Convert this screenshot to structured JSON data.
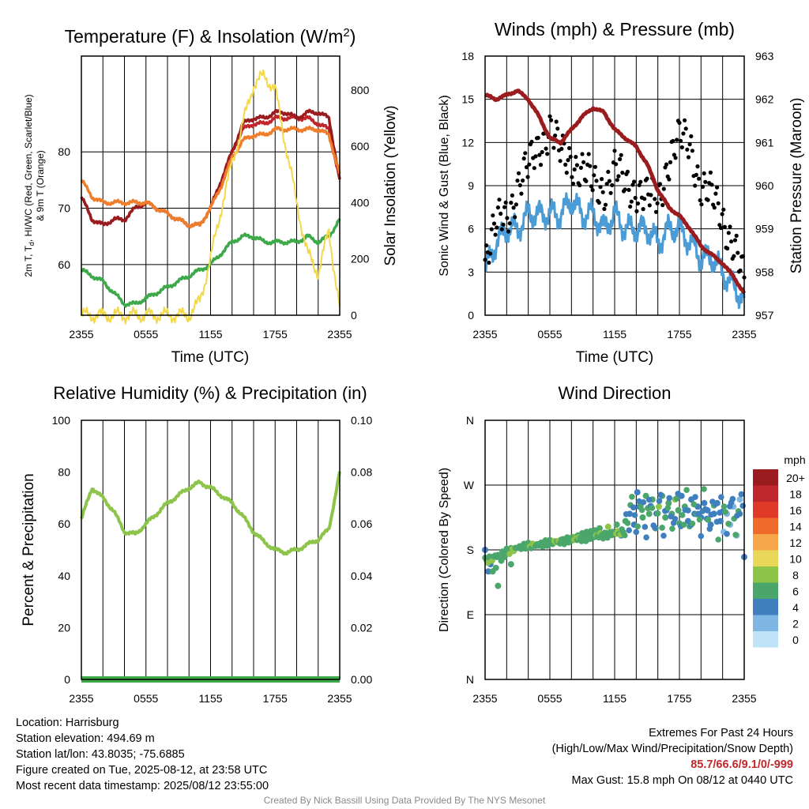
{
  "x_tick_labels": [
    "2355",
    "0555",
    "1155",
    "1755",
    "2355"
  ],
  "panels": {
    "temperature": {
      "title": "Temperature (F) & Insolation (W/m",
      "title_sup": "2",
      "title_end": ")",
      "ylabel_line1": "2m T, T",
      "ylabel_sub": "d",
      "ylabel_line1_rest": ", HI/WC (Red, Green, Scarlet/Blue)",
      "ylabel_line2": "& 9m T (Orange)",
      "y2label": "Solar Insolation (Yellow)",
      "xlabel": "Time (UTC)",
      "y_ticks": [
        "60",
        "70",
        "80"
      ],
      "y2_ticks": [
        "0",
        "200",
        "400",
        "600",
        "800"
      ]
    },
    "winds": {
      "title": "Winds (mph) & Pressure (mb)",
      "ylabel": "Sonic Wind & Gust (Blue, Black)",
      "y2label": "Station Pressure (Maroon)",
      "xlabel": "Time (UTC)",
      "y_ticks": [
        "0",
        "3",
        "6",
        "9",
        "12",
        "15",
        "18"
      ],
      "y2_ticks": [
        "957",
        "958",
        "959",
        "960",
        "961",
        "962",
        "963"
      ]
    },
    "humidity": {
      "title": "Relative Humidity (%) & Precipitation (in)",
      "ylabel": "Percent & Precipitation",
      "y_ticks": [
        "0",
        "20",
        "40",
        "60",
        "80",
        "100"
      ],
      "y2_ticks": [
        "0.00",
        "0.02",
        "0.04",
        "0.06",
        "0.08",
        "0.10"
      ]
    },
    "direction": {
      "title": "Wind Direction",
      "ylabel": "Direction (Colored By Speed)",
      "y_ticks": [
        "N",
        "E",
        "S",
        "W",
        "N"
      ],
      "legend_title": "mph",
      "legend_labels": [
        "20+",
        "18",
        "16",
        "14",
        "12",
        "10",
        "8",
        "6",
        "4",
        "2",
        "0"
      ],
      "legend_colors": [
        "#9b1c1f",
        "#c0272d",
        "#df3a28",
        "#ef6b2c",
        "#f7a64a",
        "#e9d75a",
        "#8dc44a",
        "#4aa66a",
        "#3f7fbe",
        "#7fb6e3",
        "#bfe3f7"
      ]
    }
  },
  "chart_data": [
    {
      "type": "line",
      "title": "Temperature (F) & Insolation (W/m2)",
      "xlabel": "Time (UTC)",
      "ylabel": "2m T, Td, HI/WC (Red, Green, Scarlet/Blue) & 9m T (Orange)",
      "y2label": "Solar Insolation (Yellow)",
      "x": [
        0,
        1,
        2,
        3,
        4,
        5,
        6,
        7,
        8,
        9,
        10,
        11,
        12,
        13,
        14,
        15,
        16,
        17,
        18,
        19,
        20,
        21,
        22,
        23,
        24
      ],
      "ylim": [
        51,
        97
      ],
      "y2lim": [
        0,
        920
      ],
      "series": [
        {
          "name": "2m T",
          "color": "#c0272d",
          "values": [
            72,
            68,
            67,
            68,
            68,
            70,
            71,
            70,
            69,
            68,
            67,
            67,
            70,
            75,
            80,
            84,
            85,
            85,
            86,
            86,
            86,
            86,
            85,
            84,
            75
          ]
        },
        {
          "name": "HI/WC",
          "color": "#9b1c1f",
          "values": [
            72,
            68,
            67,
            68,
            68,
            70,
            71,
            70,
            69,
            68,
            67,
            67,
            70,
            75,
            80,
            85,
            86,
            86,
            87,
            87,
            86,
            87,
            87,
            86,
            75
          ]
        },
        {
          "name": "9m T",
          "color": "#ef7e2c",
          "values": [
            75,
            72,
            71,
            71,
            71,
            71,
            71,
            70,
            69,
            68,
            67,
            67,
            70,
            74,
            79,
            82,
            83,
            83,
            84,
            84,
            84,
            84,
            84,
            83,
            76
          ]
        },
        {
          "name": "Td",
          "color": "#3ea94a",
          "values": [
            59,
            58,
            57,
            55,
            53,
            53,
            54,
            55,
            56,
            57,
            58,
            59,
            60,
            62,
            64,
            65,
            65,
            64,
            64,
            64,
            64,
            65,
            64,
            65,
            68
          ]
        },
        {
          "name": "Solar Insolation",
          "color": "#f2d84a",
          "values": [
            0,
            0,
            0,
            0,
            0,
            0,
            0,
            0,
            0,
            0,
            0,
            50,
            200,
            380,
            540,
            680,
            820,
            850,
            800,
            600,
            400,
            220,
            150,
            300,
            20
          ]
        }
      ]
    },
    {
      "type": "line",
      "title": "Winds (mph) & Pressure (mb)",
      "xlabel": "Time (UTC)",
      "ylabel": "Sonic Wind & Gust (Blue, Black)",
      "y2label": "Station Pressure (Maroon)",
      "x": [
        0,
        1,
        2,
        3,
        4,
        5,
        6,
        7,
        8,
        9,
        10,
        11,
        12,
        13,
        14,
        15,
        16,
        17,
        18,
        19,
        20,
        21,
        22,
        23,
        24
      ],
      "ylim": [
        0,
        18
      ],
      "y2lim": [
        957,
        963
      ],
      "series": [
        {
          "name": "Sonic Wind",
          "color": "#4a9bd6",
          "values": [
            3,
            5,
            6,
            6,
            7,
            7,
            7,
            7,
            8,
            7,
            7,
            6,
            7,
            6,
            6,
            6,
            5,
            6,
            6,
            5,
            4,
            4,
            3,
            2,
            1
          ]
        },
        {
          "name": "Gust",
          "color": "#000000",
          "values": [
            4,
            6,
            7,
            9,
            10,
            12,
            13,
            11,
            11,
            10,
            9,
            9,
            10,
            9,
            9,
            8,
            8,
            11,
            12,
            12,
            9,
            8,
            7,
            5,
            2
          ]
        },
        {
          "name": "Station Pressure",
          "color": "#9b1c1f",
          "values": [
            962.1,
            962.0,
            962.1,
            962.2,
            962.0,
            961.6,
            961.1,
            961.0,
            961.3,
            961.6,
            961.8,
            961.7,
            961.3,
            961.1,
            960.9,
            960.5,
            959.9,
            959.5,
            959.3,
            959.0,
            958.6,
            958.4,
            958.2,
            957.9,
            957.5
          ]
        }
      ]
    },
    {
      "type": "line",
      "title": "Relative Humidity (%) & Precipitation (in)",
      "ylabel": "Percent & Precipitation",
      "x": [
        0,
        1,
        2,
        3,
        4,
        5,
        6,
        7,
        8,
        9,
        10,
        11,
        12,
        13,
        14,
        15,
        16,
        17,
        18,
        19,
        20,
        21,
        22,
        23,
        24
      ],
      "ylim": [
        0,
        100
      ],
      "y2lim": [
        0,
        0.1
      ],
      "series": [
        {
          "name": "Relative Humidity",
          "color": "#8dc44a",
          "values": [
            62,
            74,
            70,
            65,
            57,
            56,
            60,
            64,
            68,
            71,
            74,
            76,
            74,
            71,
            68,
            63,
            57,
            53,
            50,
            49,
            50,
            52,
            54,
            58,
            80
          ]
        },
        {
          "name": "Precipitation",
          "color": "#3ea94a",
          "values": [
            0,
            0,
            0,
            0,
            0,
            0,
            0,
            0,
            0,
            0,
            0,
            0,
            0,
            0,
            0,
            0,
            0,
            0,
            0,
            0,
            0,
            0,
            0,
            0,
            0
          ]
        }
      ]
    },
    {
      "type": "scatter",
      "title": "Wind Direction",
      "ylabel": "Direction (Colored By Speed)",
      "y_ticks": [
        "N",
        "E",
        "S",
        "W",
        "N"
      ],
      "ylim": [
        0,
        360
      ],
      "colorbar_label": "mph",
      "points": [
        {
          "x": 0.0,
          "y": 180,
          "speed": 3
        },
        {
          "x": 0.3,
          "y": 150,
          "speed": 4
        },
        {
          "x": 0.5,
          "y": 160,
          "speed": 4
        },
        {
          "x": 0.7,
          "y": 150,
          "speed": 5
        },
        {
          "x": 1.0,
          "y": 155,
          "speed": 5
        },
        {
          "x": 1.2,
          "y": 130,
          "speed": 6
        },
        {
          "x": 1.5,
          "y": 165,
          "speed": 6
        },
        {
          "x": 1.8,
          "y": 170,
          "speed": 5
        },
        {
          "x": 2.1,
          "y": 175,
          "speed": 6
        },
        {
          "x": 2.4,
          "y": 160,
          "speed": 5
        },
        {
          "x": 2.7,
          "y": 180,
          "speed": 6
        },
        {
          "x": 3.0,
          "y": 183,
          "speed": 7
        },
        {
          "x": 3.4,
          "y": 185,
          "speed": 7
        },
        {
          "x": 3.8,
          "y": 186,
          "speed": 7
        },
        {
          "x": 4.2,
          "y": 185,
          "speed": 7
        },
        {
          "x": 4.6,
          "y": 187,
          "speed": 7
        },
        {
          "x": 5.0,
          "y": 188,
          "speed": 7
        },
        {
          "x": 5.4,
          "y": 187,
          "speed": 7
        },
        {
          "x": 5.8,
          "y": 190,
          "speed": 7
        },
        {
          "x": 6.2,
          "y": 190,
          "speed": 7
        },
        {
          "x": 6.6,
          "y": 192,
          "speed": 7
        },
        {
          "x": 7.0,
          "y": 194,
          "speed": 7
        },
        {
          "x": 7.4,
          "y": 195,
          "speed": 7
        },
        {
          "x": 7.8,
          "y": 196,
          "speed": 7
        },
        {
          "x": 8.2,
          "y": 198,
          "speed": 7
        },
        {
          "x": 8.6,
          "y": 200,
          "speed": 6
        },
        {
          "x": 9.0,
          "y": 203,
          "speed": 6
        },
        {
          "x": 9.4,
          "y": 205,
          "speed": 6
        },
        {
          "x": 9.8,
          "y": 206,
          "speed": 6
        },
        {
          "x": 10.2,
          "y": 207,
          "speed": 6
        },
        {
          "x": 10.6,
          "y": 210,
          "speed": 6
        },
        {
          "x": 11.0,
          "y": 200,
          "speed": 6
        },
        {
          "x": 11.4,
          "y": 212,
          "speed": 7
        },
        {
          "x": 11.8,
          "y": 205,
          "speed": 6
        },
        {
          "x": 12.2,
          "y": 215,
          "speed": 6
        },
        {
          "x": 12.6,
          "y": 200,
          "speed": 4
        },
        {
          "x": 13.0,
          "y": 220,
          "speed": 5
        },
        {
          "x": 13.4,
          "y": 230,
          "speed": 4
        },
        {
          "x": 13.8,
          "y": 215,
          "speed": 4
        },
        {
          "x": 14.1,
          "y": 260,
          "speed": 3
        },
        {
          "x": 14.3,
          "y": 240,
          "speed": 4
        },
        {
          "x": 14.6,
          "y": 225,
          "speed": 5
        },
        {
          "x": 14.9,
          "y": 255,
          "speed": 6
        },
        {
          "x": 15.2,
          "y": 230,
          "speed": 5
        },
        {
          "x": 15.5,
          "y": 250,
          "speed": 6
        },
        {
          "x": 15.8,
          "y": 210,
          "speed": 6
        },
        {
          "x": 16.1,
          "y": 240,
          "speed": 7
        },
        {
          "x": 16.4,
          "y": 255,
          "speed": 5
        },
        {
          "x": 16.7,
          "y": 225,
          "speed": 6
        },
        {
          "x": 17.0,
          "y": 245,
          "speed": 6
        },
        {
          "x": 17.3,
          "y": 230,
          "speed": 6
        },
        {
          "x": 17.6,
          "y": 250,
          "speed": 7
        },
        {
          "x": 17.9,
          "y": 235,
          "speed": 6
        },
        {
          "x": 18.2,
          "y": 255,
          "speed": 4
        },
        {
          "x": 18.5,
          "y": 240,
          "speed": 5
        },
        {
          "x": 18.8,
          "y": 220,
          "speed": 4
        },
        {
          "x": 19.1,
          "y": 250,
          "speed": 4
        },
        {
          "x": 19.4,
          "y": 230,
          "speed": 3
        },
        {
          "x": 19.7,
          "y": 240,
          "speed": 4
        },
        {
          "x": 20.0,
          "y": 225,
          "speed": 3
        },
        {
          "x": 20.3,
          "y": 245,
          "speed": 4
        },
        {
          "x": 20.6,
          "y": 235,
          "speed": 3
        },
        {
          "x": 20.9,
          "y": 215,
          "speed": 4
        },
        {
          "x": 21.2,
          "y": 230,
          "speed": 3
        },
        {
          "x": 21.5,
          "y": 245,
          "speed": 4
        },
        {
          "x": 21.8,
          "y": 220,
          "speed": 3
        },
        {
          "x": 22.1,
          "y": 205,
          "speed": 2
        },
        {
          "x": 22.4,
          "y": 230,
          "speed": 2
        },
        {
          "x": 22.7,
          "y": 215,
          "speed": 2
        },
        {
          "x": 23.0,
          "y": 240,
          "speed": 2
        },
        {
          "x": 23.3,
          "y": 200,
          "speed": 1
        },
        {
          "x": 23.6,
          "y": 250,
          "speed": 1
        },
        {
          "x": 24.0,
          "y": 170,
          "speed": 3
        }
      ]
    }
  ],
  "footer": {
    "location": "Location: Harrisburg",
    "elevation": "Station elevation: 494.69 m",
    "latlon": "Station lat/lon: 43.8035; -75.6885",
    "created": "Figure created on Tue, 2025-08-12, at 23:58 UTC",
    "recent": "Most recent data timestamp: 2025/08/12 23:55:00",
    "extremes_title": "Extremes For Past 24 Hours",
    "extremes_subtitle": "(High/Low/Max Wind/Precipitation/Snow Depth)",
    "extremes_values": "85.7/66.6/9.1/0/-999",
    "max_gust": "Max Gust: 15.8 mph On 08/12 at 0440 UTC",
    "credit": "Created By Nick Bassill Using Data Provided By The NYS Mesonet"
  }
}
